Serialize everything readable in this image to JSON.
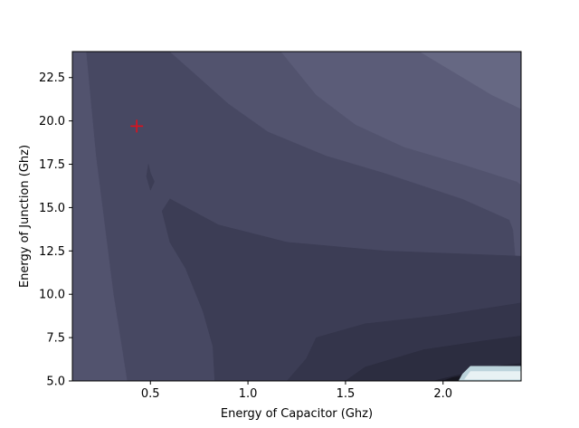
{
  "chart_data": {
    "type": "contour",
    "title": "",
    "xlabel": "Energy of Capacitor (Ghz)",
    "ylabel": "Energy of Junction (Ghz)",
    "xlim": [
      0.1,
      2.4
    ],
    "ylim": [
      5.0,
      24.0
    ],
    "x_ticks": [
      0.5,
      1.0,
      1.5,
      2.0
    ],
    "x_tick_labels": [
      "0.5",
      "1.0",
      "1.5",
      "2.0"
    ],
    "y_ticks": [
      5.0,
      7.5,
      10.0,
      12.5,
      15.0,
      17.5,
      20.0,
      22.5
    ],
    "y_tick_labels": [
      "5.0",
      "7.5",
      "10.0",
      "12.5",
      "15.0",
      "17.5",
      "20.0",
      "22.5"
    ],
    "grid": false,
    "colormap": "bone",
    "marker": {
      "x": 0.43,
      "y": 19.7,
      "symbol": "+",
      "color": "#e0101c"
    },
    "regions": [
      {
        "level": 1,
        "color": "#474862",
        "polygon": [
          [
            0.1,
            24
          ],
          [
            2.4,
            24
          ],
          [
            2.4,
            5
          ],
          [
            0.1,
            5
          ]
        ]
      },
      {
        "level": 2,
        "color": "#52536e",
        "polygon": [
          [
            0.1,
            24
          ],
          [
            0.17,
            24
          ],
          [
            0.22,
            18
          ],
          [
            0.31,
            10
          ],
          [
            0.38,
            5
          ],
          [
            0.1,
            5
          ]
        ]
      },
      {
        "level": 2,
        "color": "#52536e",
        "polygon": [
          [
            0.6,
            24
          ],
          [
            2.4,
            24
          ],
          [
            2.4,
            5.5
          ],
          [
            2.38,
            11
          ],
          [
            2.36,
            13.7
          ],
          [
            2.34,
            14.3
          ],
          [
            2.1,
            15.5
          ],
          [
            1.7,
            17
          ],
          [
            1.4,
            18
          ],
          [
            1.1,
            19.4
          ],
          [
            0.9,
            21
          ],
          [
            0.75,
            22.5
          ],
          [
            0.6,
            24
          ]
        ]
      },
      {
        "level": 3,
        "color": "#5b5c78",
        "polygon": [
          [
            1.17,
            24
          ],
          [
            2.4,
            24
          ],
          [
            2.4,
            16.3
          ],
          [
            2.38,
            16.5
          ],
          [
            2.1,
            17.5
          ],
          [
            1.8,
            18.5
          ],
          [
            1.55,
            19.8
          ],
          [
            1.35,
            21.5
          ],
          [
            1.17,
            24
          ]
        ]
      },
      {
        "level": 4,
        "color": "#666883",
        "polygon": [
          [
            1.88,
            24
          ],
          [
            2.4,
            24
          ],
          [
            2.4,
            20.7
          ],
          [
            2.25,
            21.5
          ],
          [
            1.88,
            24
          ]
        ]
      },
      {
        "level": 0,
        "color": "#3c3d55",
        "polygon": [
          [
            0.6,
            15.5
          ],
          [
            0.85,
            14
          ],
          [
            1.2,
            13
          ],
          [
            1.7,
            12.5
          ],
          [
            2.4,
            12.2
          ],
          [
            2.4,
            5
          ],
          [
            0.83,
            5
          ],
          [
            0.82,
            7
          ],
          [
            0.77,
            9
          ],
          [
            0.68,
            11.5
          ],
          [
            0.6,
            13
          ],
          [
            0.56,
            14.8
          ],
          [
            0.6,
            15.5
          ]
        ]
      },
      {
        "level": 0,
        "color": "#3c3d55",
        "polygon": [
          [
            0.49,
            17.5
          ],
          [
            0.5,
            17
          ],
          [
            0.52,
            16.5
          ],
          [
            0.5,
            16
          ],
          [
            0.48,
            16.8
          ]
        ]
      },
      {
        "level": -1,
        "color": "#34354b",
        "polygon": [
          [
            1.2,
            5
          ],
          [
            1.3,
            6.3
          ],
          [
            1.35,
            7.5
          ],
          [
            1.6,
            8.3
          ],
          [
            2.0,
            8.8
          ],
          [
            2.4,
            9.5
          ],
          [
            2.4,
            5
          ]
        ]
      },
      {
        "level": -2,
        "color": "#2c2d40",
        "polygon": [
          [
            1.5,
            5
          ],
          [
            1.6,
            5.8
          ],
          [
            1.9,
            6.8
          ],
          [
            2.2,
            7.3
          ],
          [
            2.4,
            7.6
          ],
          [
            2.4,
            5
          ]
        ]
      },
      {
        "level": -3,
        "color": "#222232",
        "polygon": [
          [
            1.95,
            5
          ],
          [
            2.1,
            5.4
          ],
          [
            2.3,
            5.9
          ],
          [
            2.4,
            6.0
          ],
          [
            2.4,
            5
          ]
        ]
      },
      {
        "level": -4,
        "color": "#161620",
        "polygon": [
          [
            2.0,
            5
          ],
          [
            2.05,
            5.2
          ],
          [
            2.2,
            5.45
          ],
          [
            2.4,
            5.55
          ],
          [
            2.4,
            5
          ]
        ]
      },
      {
        "level": 8,
        "color": "#bcd4dc",
        "polygon": [
          [
            2.08,
            5
          ],
          [
            2.1,
            5.4
          ],
          [
            2.14,
            5.85
          ],
          [
            2.4,
            5.85
          ],
          [
            2.4,
            5
          ]
        ]
      },
      {
        "level": 9,
        "color": "#e8f2f4",
        "polygon": [
          [
            2.11,
            5.1
          ],
          [
            2.14,
            5.55
          ],
          [
            2.4,
            5.55
          ],
          [
            2.4,
            5.1
          ]
        ]
      }
    ]
  }
}
